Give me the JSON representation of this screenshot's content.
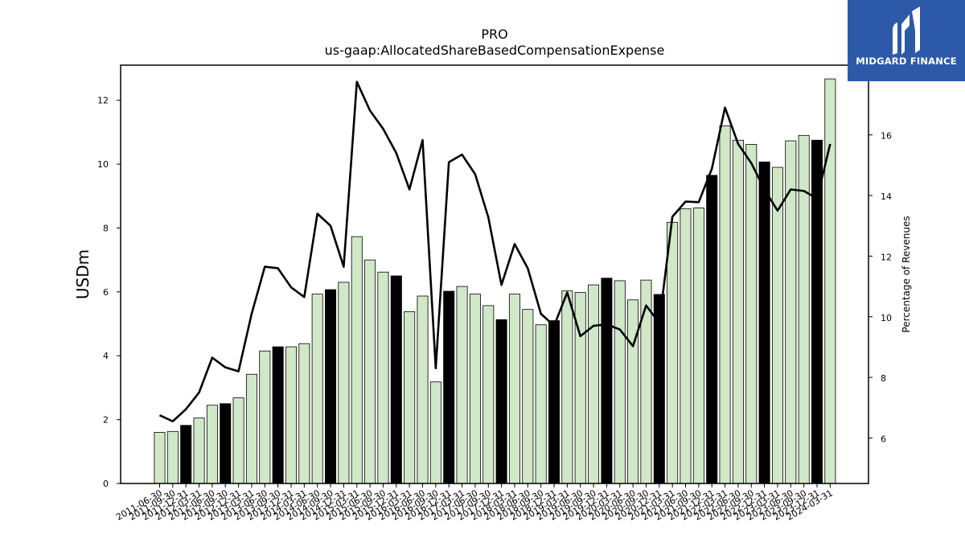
{
  "brand": {
    "name": "MIDGARD FINANCE",
    "color": "#2d5aa8"
  },
  "chart_data": {
    "type": "bar+line",
    "title": "PRO",
    "subtitle": "us-gaap:AllocatedShareBasedCompensationExpense",
    "ylabel": "USDm",
    "ylabel_right": "Percentage of Revenues",
    "ylim": [
      0,
      13.1
    ],
    "ylim_right": [
      4.5,
      18.3
    ],
    "yticks": [
      0,
      2,
      4,
      6,
      8,
      10,
      12
    ],
    "yticks_right": [
      6,
      8,
      10,
      12,
      14,
      16
    ],
    "bar_color_default": "#d0e8c8",
    "bar_color_highlight": "#000000",
    "line_color": "#000000",
    "categories": [
      "2011-06-30",
      "2011-09-30",
      "2011-12-31",
      "2012-03-31",
      "2012-06-30",
      "2012-09-30",
      "2012-12-31",
      "2013-03-31",
      "2013-06-30",
      "2013-09-30",
      "2013-12-31",
      "2014-03-31",
      "2014-06-30",
      "2014-09-30",
      "2014-12-31",
      "2015-03-31",
      "2015-06-30",
      "2015-09-30",
      "2015-12-31",
      "2016-03-31",
      "2016-06-30",
      "2016-09-30",
      "2016-12-31",
      "2017-03-31",
      "2017-06-30",
      "2017-09-30",
      "2017-12-31",
      "2018-03-31",
      "2018-06-30",
      "2018-09-30",
      "2018-12-31",
      "2019-03-31",
      "2019-06-30",
      "2019-09-30",
      "2019-12-31",
      "2020-03-31",
      "2020-06-30",
      "2020-09-30",
      "2020-12-31",
      "2021-03-31",
      "2021-06-30",
      "2021-09-30",
      "2021-12-31",
      "2022-03-31",
      "2022-06-30",
      "2022-09-30",
      "2022-12-31",
      "2023-03-31",
      "2023-06-30",
      "2023-09-30",
      "2023-12-31",
      "2024-03-31"
    ],
    "highlight": [
      2,
      5,
      9,
      13,
      18,
      22,
      26,
      30,
      34,
      38,
      42,
      46,
      50
    ],
    "series": [
      {
        "name": "USDm",
        "kind": "bar",
        "values": [
          1.6,
          1.63,
          1.82,
          2.05,
          2.45,
          2.5,
          2.68,
          3.42,
          4.15,
          4.28,
          4.28,
          4.38,
          5.93,
          6.07,
          6.3,
          7.73,
          7.0,
          6.62,
          6.5,
          5.38,
          5.87,
          3.18,
          6.02,
          6.17,
          5.93,
          5.57,
          5.13,
          5.93,
          5.45,
          4.97,
          5.1,
          6.03,
          5.98,
          6.22,
          6.43,
          6.35,
          5.75,
          6.37,
          5.92,
          8.18,
          8.6,
          8.63,
          9.65,
          11.2,
          10.75,
          10.62,
          10.07,
          9.9,
          10.73,
          10.9,
          10.75,
          12.67
        ]
      },
      {
        "name": "Percentage of Revenues",
        "kind": "line",
        "values": [
          6.75,
          6.55,
          6.95,
          7.5,
          8.65,
          8.33,
          8.2,
          10.1,
          11.65,
          11.6,
          10.97,
          10.65,
          13.4,
          13.0,
          11.65,
          17.75,
          16.8,
          16.2,
          15.4,
          14.2,
          15.83,
          8.3,
          15.1,
          15.35,
          14.7,
          13.28,
          11.05,
          12.4,
          11.6,
          10.1,
          9.7,
          10.8,
          9.36,
          9.7,
          9.75,
          9.58,
          9.03,
          10.37,
          9.8,
          13.3,
          13.8,
          13.78,
          14.88,
          16.9,
          15.7,
          15.07,
          14.2,
          13.5,
          14.2,
          14.15,
          13.9,
          15.7
        ]
      }
    ]
  }
}
